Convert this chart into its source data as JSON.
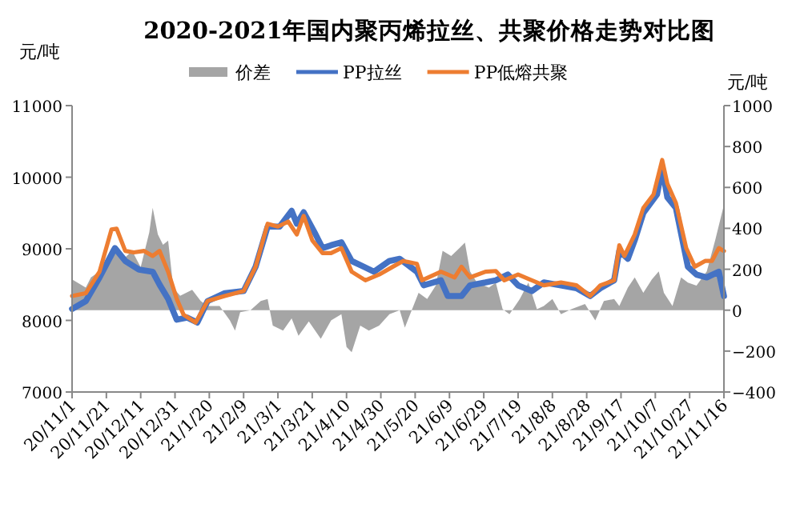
{
  "chart_data": {
    "type": "line",
    "title": "2020-2021年国内聚丙烯拉丝、共聚价格走势对比图",
    "ylabel": "元/吨",
    "y2label": "元/吨",
    "xlim": [
      "2020-11-01",
      "2021-11-16"
    ],
    "xticks": [
      {
        "value": "2020-11-01",
        "label": "20/11/1"
      },
      {
        "value": "2020-11-21",
        "label": "20/11/21"
      },
      {
        "value": "2020-12-11",
        "label": "20/12/11"
      },
      {
        "value": "2020-12-31",
        "label": "20/12/31"
      },
      {
        "value": "2021-01-20",
        "label": "21/1/20"
      },
      {
        "value": "2021-02-09",
        "label": "21/2/9"
      },
      {
        "value": "2021-03-01",
        "label": "21/3/1"
      },
      {
        "value": "2021-03-21",
        "label": "21/3/21"
      },
      {
        "value": "2021-04-10",
        "label": "21/4/10"
      },
      {
        "value": "2021-04-30",
        "label": "21/4/30"
      },
      {
        "value": "2021-05-20",
        "label": "21/5/20"
      },
      {
        "value": "2021-06-09",
        "label": "21/6/9"
      },
      {
        "value": "2021-06-29",
        "label": "21/6/29"
      },
      {
        "value": "2021-07-19",
        "label": "21/7/19"
      },
      {
        "value": "2021-08-08",
        "label": "21/8/8"
      },
      {
        "value": "2021-08-28",
        "label": "21/8/28"
      },
      {
        "value": "2021-09-17",
        "label": "21/9/17"
      },
      {
        "value": "2021-10-07",
        "label": "21/10/7"
      },
      {
        "value": "2021-10-27",
        "label": "21/10/27"
      },
      {
        "value": "2021-11-16",
        "label": "21/11/16"
      }
    ],
    "ylim": [
      7000,
      11000
    ],
    "yticks": [
      7000,
      8000,
      9000,
      10000,
      11000
    ],
    "y2lim": [
      -400,
      1000
    ],
    "y2ticks": [
      -400,
      -200,
      0,
      200,
      400,
      600,
      800,
      1000
    ],
    "legend": "top",
    "grid": false,
    "series": [
      {
        "name": "价差",
        "type": "area",
        "axis": "y2",
        "color": "#a5a5a5",
        "x": [
          "2020-11-01",
          "2020-11-09",
          "2020-11-12",
          "2020-11-17",
          "2020-11-24",
          "2020-12-01",
          "2020-12-06",
          "2020-12-11",
          "2020-12-16",
          "2020-12-18",
          "2020-12-21",
          "2020-12-24",
          "2020-12-27",
          "2020-12-30",
          "2021-01-03",
          "2021-01-10",
          "2021-01-15",
          "2021-01-19",
          "2021-01-26",
          "2021-02-01",
          "2021-02-04",
          "2021-02-07",
          "2021-02-13",
          "2021-02-19",
          "2021-02-23",
          "2021-02-26",
          "2021-03-04",
          "2021-03-09",
          "2021-03-13",
          "2021-03-19",
          "2021-03-26",
          "2021-04-01",
          "2021-04-07",
          "2021-04-10",
          "2021-04-13",
          "2021-04-18",
          "2021-04-23",
          "2021-04-29",
          "2021-05-05",
          "2021-05-11",
          "2021-05-14",
          "2021-05-18",
          "2021-05-22",
          "2021-05-27",
          "2021-06-01",
          "2021-06-05",
          "2021-06-10",
          "2021-06-15",
          "2021-06-18",
          "2021-06-21",
          "2021-06-25",
          "2021-07-02",
          "2021-07-06",
          "2021-07-10",
          "2021-07-14",
          "2021-07-20",
          "2021-07-25",
          "2021-07-30",
          "2021-08-03",
          "2021-08-08",
          "2021-08-13",
          "2021-08-19",
          "2021-08-27",
          "2021-09-02",
          "2021-09-07",
          "2021-09-13",
          "2021-09-16",
          "2021-09-21",
          "2021-09-25",
          "2021-09-30",
          "2021-10-05",
          "2021-10-09",
          "2021-10-12",
          "2021-10-17",
          "2021-10-22",
          "2021-10-26",
          "2021-10-31",
          "2021-11-06",
          "2021-11-11",
          "2021-11-16"
        ],
        "values": [
          150,
          110,
          160,
          190,
          305,
          250,
          290,
          210,
          380,
          500,
          370,
          320,
          340,
          110,
          70,
          100,
          45,
          20,
          20,
          -50,
          -100,
          -10,
          0,
          45,
          55,
          -75,
          -100,
          -40,
          -125,
          -55,
          -140,
          -50,
          -20,
          -180,
          -205,
          -75,
          -100,
          -75,
          -20,
          0,
          -85,
          0,
          85,
          55,
          120,
          290,
          265,
          305,
          330,
          190,
          135,
          110,
          135,
          5,
          -20,
          55,
          135,
          5,
          20,
          55,
          -20,
          5,
          30,
          -50,
          45,
          55,
          20,
          110,
          160,
          85,
          150,
          190,
          85,
          20,
          160,
          135,
          120,
          190,
          345,
          515
        ]
      },
      {
        "name": "PP拉丝",
        "color": "#4472c4",
        "x": [
          "2020-11-01",
          "2020-11-09",
          "2020-11-17",
          "2020-11-26",
          "2020-12-02",
          "2020-12-10",
          "2020-12-18",
          "2020-12-22",
          "2020-12-27",
          "2021-01-01",
          "2021-01-07",
          "2021-01-13",
          "2021-01-19",
          "2021-01-29",
          "2021-02-09",
          "2021-02-16",
          "2021-02-23",
          "2021-03-02",
          "2021-03-09",
          "2021-03-12",
          "2021-03-16",
          "2021-03-23",
          "2021-03-27",
          "2021-04-01",
          "2021-04-07",
          "2021-04-13",
          "2021-04-20",
          "2021-04-26",
          "2021-05-05",
          "2021-05-11",
          "2021-05-21",
          "2021-05-25",
          "2021-06-04",
          "2021-06-08",
          "2021-06-16",
          "2021-06-21",
          "2021-06-30",
          "2021-07-06",
          "2021-07-13",
          "2021-07-19",
          "2021-07-27",
          "2021-08-03",
          "2021-08-13",
          "2021-08-22",
          "2021-08-30",
          "2021-09-05",
          "2021-09-13",
          "2021-09-16",
          "2021-09-21",
          "2021-09-25",
          "2021-09-30",
          "2021-10-08",
          "2021-10-11",
          "2021-10-14",
          "2021-10-19",
          "2021-10-26",
          "2021-10-31",
          "2021-11-06",
          "2021-11-13",
          "2021-11-16"
        ],
        "values": [
          8160,
          8270,
          8600,
          9010,
          8830,
          8710,
          8680,
          8500,
          8300,
          8010,
          8040,
          7970,
          8270,
          8380,
          8410,
          8750,
          9310,
          9310,
          9530,
          9350,
          9510,
          9200,
          9010,
          9050,
          9090,
          8830,
          8750,
          8680,
          8830,
          8860,
          8680,
          8490,
          8560,
          8340,
          8340,
          8490,
          8530,
          8560,
          8640,
          8490,
          8410,
          8530,
          8490,
          8450,
          8340,
          8450,
          8560,
          8970,
          8860,
          9120,
          9500,
          9760,
          10130,
          9720,
          9570,
          8750,
          8640,
          8600,
          8680,
          8340
        ]
      },
      {
        "name": "PP低熔共聚",
        "color": "#ed7d31",
        "x": [
          "2020-11-01",
          "2020-11-09",
          "2020-11-17",
          "2020-11-24",
          "2020-11-27",
          "2020-12-02",
          "2020-12-07",
          "2020-12-13",
          "2020-12-18",
          "2020-12-22",
          "2020-12-27",
          "2021-01-01",
          "2021-01-05",
          "2021-01-12",
          "2021-01-19",
          "2021-01-29",
          "2021-02-09",
          "2021-02-16",
          "2021-02-23",
          "2021-03-01",
          "2021-03-07",
          "2021-03-12",
          "2021-03-16",
          "2021-03-21",
          "2021-03-27",
          "2021-04-01",
          "2021-04-07",
          "2021-04-13",
          "2021-04-21",
          "2021-04-29",
          "2021-05-07",
          "2021-05-13",
          "2021-05-21",
          "2021-05-24",
          "2021-06-04",
          "2021-06-08",
          "2021-06-12",
          "2021-06-16",
          "2021-06-21",
          "2021-06-30",
          "2021-07-06",
          "2021-07-11",
          "2021-07-19",
          "2021-07-27",
          "2021-08-03",
          "2021-08-13",
          "2021-08-22",
          "2021-08-30",
          "2021-09-05",
          "2021-09-13",
          "2021-09-16",
          "2021-09-19",
          "2021-09-25",
          "2021-09-30",
          "2021-10-06",
          "2021-10-11",
          "2021-10-14",
          "2021-10-19",
          "2021-10-25",
          "2021-10-30",
          "2021-11-05",
          "2021-11-09",
          "2021-11-13",
          "2021-11-16"
        ],
        "values": [
          8340,
          8380,
          8680,
          9270,
          9280,
          8970,
          8950,
          8970,
          8900,
          8970,
          8680,
          8300,
          8080,
          7970,
          8270,
          8340,
          8410,
          8750,
          9350,
          9310,
          9380,
          9200,
          9460,
          9120,
          8940,
          8940,
          9010,
          8680,
          8560,
          8640,
          8750,
          8830,
          8790,
          8560,
          8680,
          8640,
          8600,
          8750,
          8600,
          8680,
          8690,
          8560,
          8640,
          8560,
          8490,
          8530,
          8490,
          8340,
          8490,
          8560,
          9050,
          8900,
          9200,
          9570,
          9760,
          10240,
          9910,
          9640,
          9010,
          8750,
          8830,
          8830,
          9010,
          8970
        ]
      }
    ]
  }
}
